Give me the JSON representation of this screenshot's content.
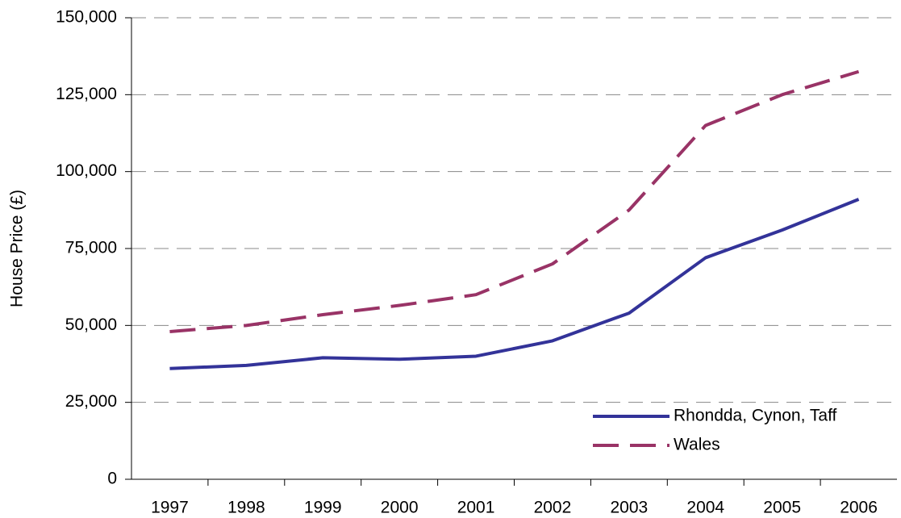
{
  "chart_data": {
    "type": "line",
    "y_label": "House Price (£)",
    "categories": [
      "1997",
      "1998",
      "1999",
      "2000",
      "2001",
      "2002",
      "2003",
      "2004",
      "2005",
      "2006"
    ],
    "series": [
      {
        "name": "Rhondda, Cynon, Taff",
        "color": "#333399",
        "dash": "solid",
        "values": [
          36000,
          37000,
          39500,
          39000,
          40000,
          45000,
          54000,
          72000,
          81000,
          91000
        ]
      },
      {
        "name": "Wales",
        "color": "#993366",
        "dash": "dashed",
        "values": [
          48000,
          50000,
          53500,
          56500,
          60000,
          70000,
          87500,
          115000,
          125000,
          132500
        ]
      }
    ],
    "ylim": [
      0,
      150000
    ],
    "yticks": [
      0,
      {
        "value": 25000,
        "label": "25,000"
      },
      {
        "value": 50000,
        "label": "50,000"
      },
      {
        "value": 75000,
        "label": "75,000"
      },
      {
        "value": 100000,
        "label": "100,000"
      },
      {
        "value": 125000,
        "label": "125,000"
      },
      {
        "value": 150000,
        "label": "150,000"
      }
    ],
    "grid": true,
    "legend": "lower right"
  }
}
